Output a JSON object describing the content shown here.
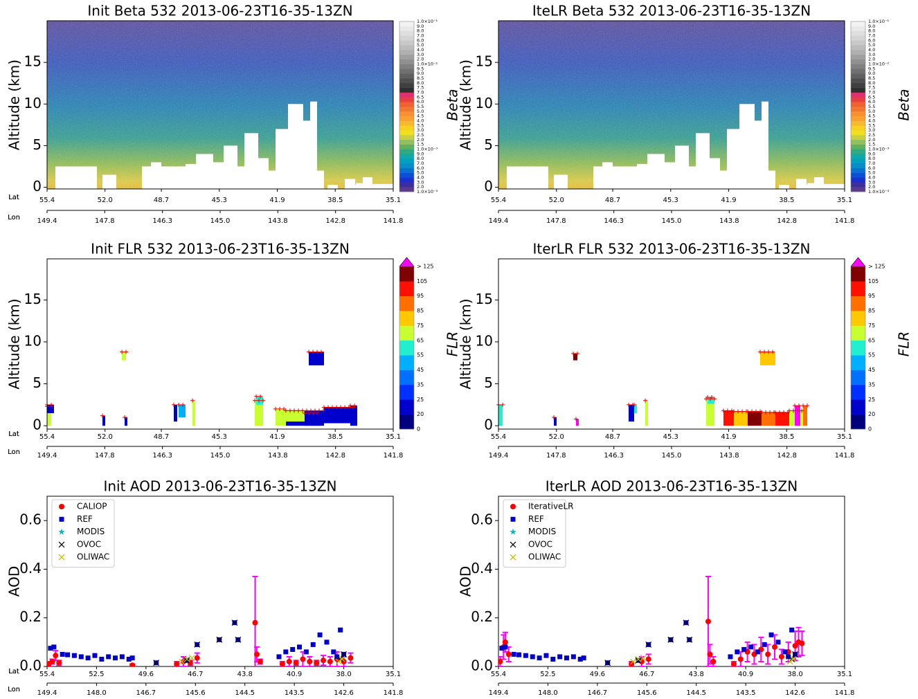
{
  "chart_data": [
    {
      "type": "heatmap",
      "title": "Init Beta 532 2013-06-23T16-35-13ZN",
      "ylabel": "Altitude (km)",
      "ylim": [
        -0.2,
        20
      ],
      "yticks": [
        0,
        5,
        10,
        15
      ],
      "xlim": [
        55.4,
        35.1
      ],
      "xlabel": "Lat",
      "xticks": [
        55.4,
        {
          "value": 52,
          "label": "52.0"
        },
        48.7,
        45.3,
        41.9,
        38.5,
        35.1
      ],
      "lon_label": "Lon",
      "lon_labels": [
        "149.4",
        "147.8",
        "146.3",
        "145.0",
        "143.8",
        "142.8",
        "141.8"
      ],
      "colorbar": {
        "label": "Beta",
        "labels": [
          "1.0×10⁻⁴",
          "2.0",
          "3.0",
          "4.0",
          "5.0",
          "6.0",
          "7.0",
          "8.0",
          "9.0",
          "1.0×10⁻³",
          "1.5",
          "2.0",
          "2.5",
          "3.0",
          "3.5",
          "4.0",
          "4.5",
          "5.0",
          "5.5",
          "6.0",
          "6.5",
          "7.0",
          "7.5",
          "8.0",
          "8.5",
          "9.0",
          "9.5",
          "1.0×10⁻²",
          "2.0",
          "3.0",
          "4.0",
          "5.0",
          "6.0",
          "7.0",
          "8.0",
          "9.0",
          "1.0×10⁻¹"
        ],
        "colors": [
          "#5b3a8c",
          "#3b2fa0",
          "#1d2fd0",
          "#0a4fd8",
          "#0870d0",
          "#0a8cc8",
          "#00a0c0",
          "#10a8a8",
          "#30a880",
          "#60b060",
          "#90c060",
          "#c8d040",
          "#f0e020",
          "#f8d020",
          "#f8b830",
          "#f8a030",
          "#f89030",
          "#f07830",
          "#f06030",
          "#e84040",
          "#e03070",
          "#303030",
          "#404040",
          "#505050",
          "#606060",
          "#707070",
          "#808080",
          "#909090",
          "#a0a0a0",
          "#b0b0b0",
          "#bcbcbc",
          "#c8c8c8",
          "#d4d4d4",
          "#dedede",
          "#e8e8e8",
          "#f2f2f2"
        ]
      }
    },
    {
      "type": "heatmap",
      "title": "IteLR Beta 532 2013-06-23T16-35-13ZN",
      "ylabel": "Altitude (km)",
      "ylim": [
        -0.2,
        20
      ],
      "yticks": [
        0,
        5,
        10,
        15
      ],
      "xlim": [
        55.4,
        35.1
      ],
      "xlabel": "Lat",
      "xticks": [
        55.4,
        {
          "value": 52,
          "label": "52.0"
        },
        48.7,
        45.3,
        41.9,
        38.5,
        35.1
      ],
      "lon_label": "Lon",
      "lon_labels": [
        "149.4",
        "147.8",
        "146.3",
        "145.0",
        "143.8",
        "142.8",
        "141.8"
      ],
      "colorbar": {
        "label": "Beta",
        "labels": [
          "1.0×10⁻⁴",
          "2.0",
          "3.0",
          "4.0",
          "5.0",
          "6.0",
          "7.0",
          "8.0",
          "9.0",
          "1.0×10⁻³",
          "1.5",
          "2.0",
          "2.5",
          "3.0",
          "3.5",
          "4.0",
          "4.5",
          "5.0",
          "5.5",
          "6.0",
          "6.5",
          "7.0",
          "7.5",
          "8.0",
          "8.5",
          "9.0",
          "9.5",
          "1.0×10⁻²",
          "2.0",
          "3.0",
          "4.0",
          "5.0",
          "6.0",
          "7.0",
          "8.0",
          "9.0",
          "1.0×10⁻¹"
        ],
        "colors": [
          "#5b3a8c",
          "#3b2fa0",
          "#1d2fd0",
          "#0a4fd8",
          "#0870d0",
          "#0a8cc8",
          "#00a0c0",
          "#10a8a8",
          "#30a880",
          "#60b060",
          "#90c060",
          "#c8d040",
          "#f0e020",
          "#f8d020",
          "#f8b830",
          "#f8a030",
          "#f89030",
          "#f07830",
          "#f06030",
          "#e84040",
          "#e03070",
          "#303030",
          "#404040",
          "#505050",
          "#606060",
          "#707070",
          "#808080",
          "#909090",
          "#a0a0a0",
          "#b0b0b0",
          "#bcbcbc",
          "#c8c8c8",
          "#d4d4d4",
          "#dedede",
          "#e8e8e8",
          "#f2f2f2"
        ]
      }
    },
    {
      "type": "heatmap",
      "title": "Init FLR 532 2013-06-23T16-35-13ZN",
      "ylabel": "Altitude (km)",
      "ylim": [
        -0.4,
        19.9
      ],
      "yticks": [
        0,
        5,
        10,
        15
      ],
      "xlim": [
        55.4,
        35.1
      ],
      "xlabel": "Lat",
      "xticks": [
        55.4,
        {
          "value": 52,
          "label": "52.0"
        },
        48.7,
        45.3,
        41.9,
        38.5,
        35.1
      ],
      "lon_label": "Lon",
      "lon_labels": [
        "149.4",
        "147.8",
        "146.3",
        "145.0",
        "143.8",
        "142.8",
        "141.8"
      ],
      "colorbar": {
        "label": "FLR",
        "labels": [
          "0",
          "20",
          "25",
          "35",
          "45",
          "55",
          "65",
          "75",
          "85",
          "95",
          "105",
          "> 125"
        ],
        "colors": [
          "#00007f",
          "#0000cd",
          "#0030ff",
          "#0070ff",
          "#00b0ff",
          "#20f0d0",
          "#c8ff30",
          "#ffc800",
          "#ff7000",
          "#ff1000",
          "#800000"
        ],
        "extend_color": "#ff00ff"
      }
    },
    {
      "type": "heatmap",
      "title": "IterLR FLR 532 2013-06-23T16-35-13ZN",
      "ylabel": "Altitude (km)",
      "ylim": [
        -0.4,
        19.9
      ],
      "yticks": [
        0,
        5,
        10,
        15
      ],
      "xlim": [
        55.4,
        35.1
      ],
      "xlabel": "Lat",
      "xticks": [
        55.4,
        {
          "value": 52,
          "label": "52.0"
        },
        48.7,
        45.3,
        41.9,
        38.5,
        35.1
      ],
      "lon_label": "Lon",
      "lon_labels": [
        "149.4",
        "147.8",
        "146.3",
        "145.0",
        "143.8",
        "142.8",
        "141.8"
      ],
      "colorbar": {
        "label": "FLR",
        "labels": [
          "0",
          "20",
          "25",
          "35",
          "45",
          "55",
          "65",
          "75",
          "85",
          "95",
          "105",
          "> 125"
        ],
        "colors": [
          "#00007f",
          "#0000cd",
          "#0030ff",
          "#0070ff",
          "#00b0ff",
          "#20f0d0",
          "#c8ff30",
          "#ffc800",
          "#ff7000",
          "#ff1000",
          "#800000"
        ],
        "extend_color": "#ff00ff"
      }
    },
    {
      "type": "scatter",
      "title": "Init AOD 2013-06-23T16-35-13ZN",
      "ylabel": "AOD",
      "ylim": [
        0,
        0.7
      ],
      "yticks": [
        {
          "value": 0,
          "label": "0.0"
        },
        0.2,
        0.4,
        0.6
      ],
      "xlim": [
        55.4,
        35.1
      ],
      "xlabel": "Lat",
      "xticks": [
        55.4,
        52.5,
        49.6,
        46.7,
        43.8,
        40.9,
        {
          "value": 38,
          "label": "38.0"
        },
        35.1
      ],
      "lon_label": "Lon",
      "lon_labels": [
        "149.4",
        "148.0",
        "146.7",
        "145.6",
        "144.5",
        "143.5",
        "142.6",
        "141.8"
      ],
      "legend": "upper left",
      "error_color": "#ff00ff",
      "series": [
        {
          "name": "CALIOP",
          "color": "#ff0000",
          "marker": "circle",
          "x": [
            55.3,
            55.1,
            54.9,
            54.7,
            50.4,
            47.8,
            47.4,
            47.0,
            46.6,
            43.2,
            43.1,
            42.9,
            41.6,
            41.2,
            40.8,
            40.4,
            40.0,
            39.6,
            39.2,
            38.8,
            38.4,
            38.0,
            37.6
          ],
          "values": [
            0.01,
            0.02,
            0.045,
            0.015,
            0.005,
            0.01,
            0.02,
            0.015,
            0.035,
            0.18,
            0.05,
            0.02,
            0.01,
            0.02,
            0.015,
            0.03,
            0.02,
            0.015,
            0.025,
            0.02,
            0.03,
            0.02,
            0.035
          ],
          "errors": [
            0.01,
            0.01,
            0.02,
            0.01,
            0.005,
            0.01,
            0.02,
            0.01,
            0.02,
            0.19,
            0.03,
            0.01,
            0.01,
            0.02,
            0.01,
            0.03,
            0.02,
            0.01,
            0.02,
            0.02,
            0.03,
            0.02,
            0.02
          ]
        },
        {
          "name": "REF",
          "color": "#0000cc",
          "marker": "square",
          "x": [
            55.2,
            55.0,
            54.5,
            54.2,
            53.8,
            53.4,
            53.0,
            52.6,
            52.2,
            51.8,
            51.4,
            51.0,
            50.6,
            50.4,
            49.0,
            47.2,
            46.6,
            45.3,
            44.4,
            44.2,
            41.8,
            41.4,
            41.0,
            40.6,
            40.2,
            39.8,
            39.4,
            39.0,
            38.6,
            38.4,
            38.2,
            38.0
          ],
          "values": [
            0.075,
            0.08,
            0.05,
            0.048,
            0.045,
            0.04,
            0.035,
            0.045,
            0.03,
            0.04,
            0.035,
            0.04,
            0.03,
            0.035,
            0.015,
            0.025,
            0.09,
            0.11,
            0.18,
            0.11,
            0.04,
            0.06,
            0.07,
            0.08,
            0.06,
            0.09,
            0.13,
            0.1,
            0.06,
            0.04,
            0.15,
            0.05
          ]
        },
        {
          "name": "MODIS",
          "color": "#00bfbf",
          "marker": "star",
          "x": [],
          "values": []
        },
        {
          "name": "OVOC",
          "color": "#000000",
          "marker": "x",
          "x": [
            49.0,
            47.2,
            46.6,
            45.3,
            44.4,
            44.2,
            38.2,
            38.0
          ],
          "values": [
            0.015,
            0.025,
            0.09,
            0.11,
            0.18,
            0.11,
            0.03,
            0.05
          ]
        },
        {
          "name": "OLIWAC",
          "color": "#bfbf00",
          "marker": "x",
          "x": [
            47.5,
            47.2,
            46.9,
            38.3,
            38.1
          ],
          "values": [
            0.02,
            0.03,
            0.035,
            0.02,
            0.03
          ]
        }
      ]
    },
    {
      "type": "scatter",
      "title": "IterLR AOD 2013-06-23T16-35-13ZN",
      "ylabel": "AOD",
      "ylim": [
        0,
        0.7
      ],
      "yticks": [
        {
          "value": 0,
          "label": "0.0"
        },
        0.2,
        0.4,
        0.6
      ],
      "xlim": [
        55.4,
        35.1
      ],
      "xlabel": "Lat",
      "xticks": [
        55.4,
        52.5,
        49.6,
        46.7,
        43.8,
        40.9,
        {
          "value": 38,
          "label": "38.0"
        },
        35.1
      ],
      "lon_label": "Lon",
      "lon_labels": [
        "149.4",
        "148.0",
        "146.7",
        "145.6",
        "144.5",
        "143.5",
        "142.6",
        "141.8"
      ],
      "legend": "upper left",
      "error_color": "#ff00ff",
      "series": [
        {
          "name": "IterativeLR",
          "color": "#ff0000",
          "marker": "circle",
          "x": [
            55.3,
            55.1,
            55.0,
            54.8,
            47.6,
            47.0,
            46.6,
            43.1,
            43.0,
            42.8,
            41.6,
            41.2,
            40.8,
            40.4,
            40.0,
            39.6,
            39.2,
            38.8,
            38.4,
            38.0,
            37.8,
            37.6
          ],
          "values": [
            0.02,
            0.08,
            0.1,
            0.05,
            0.01,
            0.02,
            0.03,
            0.185,
            0.05,
            0.02,
            0.01,
            0.03,
            0.06,
            0.05,
            0.07,
            0.05,
            0.08,
            0.04,
            0.06,
            0.085,
            0.1,
            0.095
          ],
          "errors": [
            0.02,
            0.05,
            0.04,
            0.03,
            0.01,
            0.02,
            0.02,
            0.185,
            0.04,
            0.02,
            0.01,
            0.03,
            0.04,
            0.04,
            0.05,
            0.04,
            0.05,
            0.03,
            0.04,
            0.06,
            0.06,
            0.05
          ]
        },
        {
          "name": "REF",
          "color": "#0000cc",
          "marker": "square",
          "x": [
            55.2,
            55.0,
            54.5,
            54.2,
            53.8,
            53.4,
            53.0,
            52.6,
            52.2,
            51.8,
            51.4,
            51.0,
            50.6,
            50.4,
            49.0,
            47.2,
            46.6,
            45.3,
            44.4,
            44.2,
            41.8,
            41.4,
            41.0,
            40.6,
            40.2,
            39.8,
            39.4,
            39.0,
            38.6,
            38.4,
            38.2,
            38.0
          ],
          "values": [
            0.075,
            0.08,
            0.05,
            0.048,
            0.045,
            0.04,
            0.035,
            0.045,
            0.03,
            0.04,
            0.035,
            0.04,
            0.03,
            0.035,
            0.015,
            0.025,
            0.09,
            0.11,
            0.18,
            0.11,
            0.04,
            0.06,
            0.07,
            0.08,
            0.06,
            0.09,
            0.13,
            0.1,
            0.06,
            0.04,
            0.15,
            0.05
          ]
        },
        {
          "name": "MODIS",
          "color": "#00bfbf",
          "marker": "star",
          "x": [],
          "values": []
        },
        {
          "name": "OVOC",
          "color": "#000000",
          "marker": "x",
          "x": [
            49.0,
            47.2,
            46.6,
            45.3,
            44.4,
            44.2,
            38.2,
            38.0
          ],
          "values": [
            0.015,
            0.025,
            0.09,
            0.11,
            0.18,
            0.11,
            0.03,
            0.05
          ]
        },
        {
          "name": "OLIWAC",
          "color": "#bfbf00",
          "marker": "x",
          "x": [
            47.5,
            47.2,
            46.9,
            38.3,
            38.1
          ],
          "values": [
            0.02,
            0.03,
            0.035,
            0.02,
            0.03
          ]
        }
      ]
    }
  ]
}
